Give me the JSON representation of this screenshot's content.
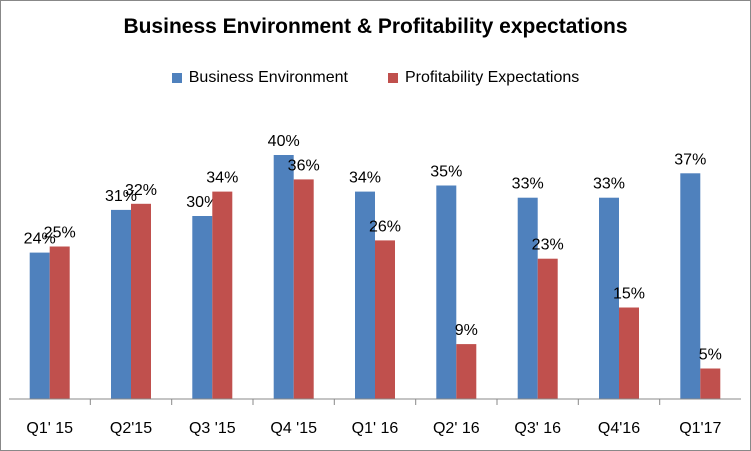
{
  "chart_data": {
    "type": "bar",
    "title": "Business Environment & Profitability expectations",
    "categories": [
      "Q1' 15",
      "Q2'15",
      "Q3 '15",
      "Q4 '15",
      "Q1' 16",
      "Q2' 16",
      "Q3' 16",
      "Q4'16",
      "Q1'17"
    ],
    "series": [
      {
        "name": "Business Environment",
        "color": "#4f81bd",
        "values": [
          24,
          31,
          30,
          40,
          34,
          35,
          33,
          33,
          37
        ],
        "labels": [
          "24%",
          "31%",
          "30%",
          "40%",
          "34%",
          "35%",
          "33%",
          "33%",
          "37%"
        ]
      },
      {
        "name": "Profitability Expectations",
        "color": "#c0504d",
        "values": [
          25,
          32,
          34,
          36,
          26,
          9,
          23,
          15,
          5
        ],
        "labels": [
          "25%",
          "32%",
          "34%",
          "36%",
          "26%",
          "9%",
          "23%",
          "15%",
          "5%"
        ]
      }
    ],
    "xlabel": "",
    "ylabel": "",
    "ylim": [
      0,
      45
    ],
    "grid": false,
    "legend_position": "top"
  }
}
